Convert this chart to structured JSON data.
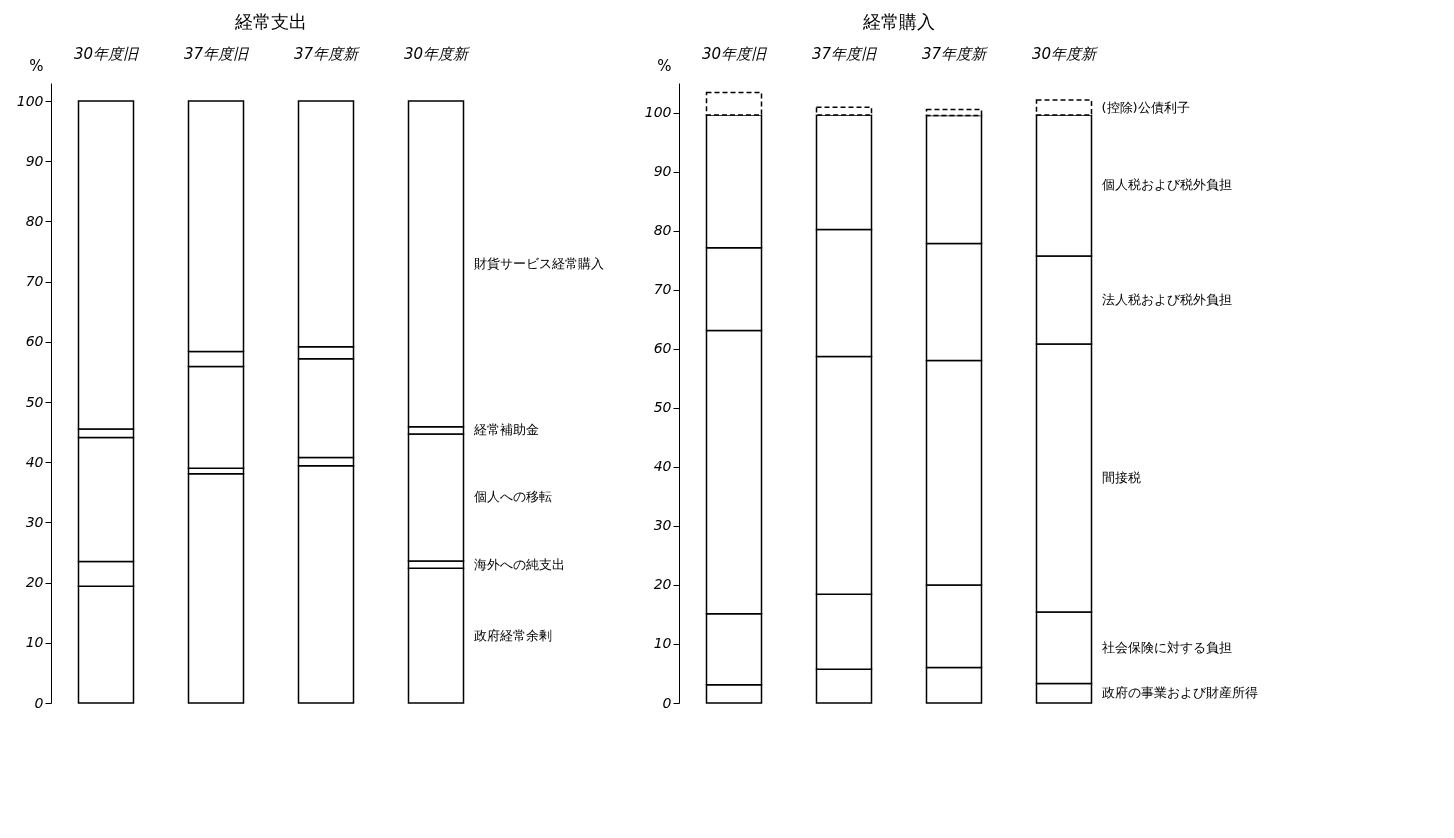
{
  "chart_data": [
    {
      "type": "bar",
      "title": "経常支出",
      "ylabel": "%",
      "stacked": true,
      "categories": [
        "30年度旧",
        "37年度旧",
        "37年度新",
        "30年度新"
      ],
      "ylim": [
        0,
        103
      ],
      "yticks": [
        0,
        10,
        20,
        30,
        40,
        50,
        60,
        70,
        80,
        90,
        100
      ],
      "grid": false,
      "legend": false,
      "series": [
        {
          "name": "政府経常余剰",
          "color": "#ffffff",
          "values": [
            19.4,
            38.1,
            39.4,
            22.4
          ]
        },
        {
          "name": "海外への純支出",
          "color": "#ffffff",
          "values": [
            4.1,
            0.9,
            1.4,
            1.2
          ]
        },
        {
          "name": "個人への移転",
          "color": "#ffffff",
          "values": [
            20.6,
            16.9,
            16.4,
            21.1
          ]
        },
        {
          "name": "経常補助金",
          "color": "#ffffff",
          "values": [
            1.4,
            2.5,
            2.0,
            1.2
          ]
        },
        {
          "name": "財貨サービス経常購入",
          "color": "#ffffff",
          "values": [
            54.5,
            41.6,
            40.8,
            54.1
          ]
        }
      ]
    },
    {
      "type": "bar",
      "title": "経常購入",
      "ylabel": "%",
      "stacked": true,
      "categories": [
        "30年度旧",
        "37年度旧",
        "37年度新",
        "30年度新"
      ],
      "ylim": [
        0,
        105
      ],
      "yticks": [
        0,
        10,
        20,
        30,
        40,
        50,
        60,
        70,
        80,
        90,
        100
      ],
      "grid": false,
      "legend": false,
      "series": [
        {
          "name": "政府の事業および財産所得",
          "color": "#ffffff",
          "values": [
            3.1,
            5.7,
            6.0,
            3.3
          ]
        },
        {
          "name": "社会保険に対する負担",
          "color": "#ffffff",
          "values": [
            12.0,
            12.7,
            14.0,
            12.1
          ]
        },
        {
          "name": "間接税",
          "color": "#ffffff",
          "values": [
            48.0,
            40.3,
            38.0,
            45.4
          ]
        },
        {
          "name": "法人税および税外負担",
          "color": "#ffffff",
          "values": [
            14.0,
            21.5,
            19.8,
            14.9
          ]
        },
        {
          "name": "個人税および税外負担",
          "color": "#ffffff",
          "values": [
            22.5,
            19.4,
            21.7,
            23.9
          ]
        },
        {
          "name": "(控除)公債利子",
          "color": "#ffffff",
          "line_style": "dashed",
          "values": [
            3.8,
            1.3,
            1.0,
            2.5
          ]
        }
      ]
    }
  ]
}
